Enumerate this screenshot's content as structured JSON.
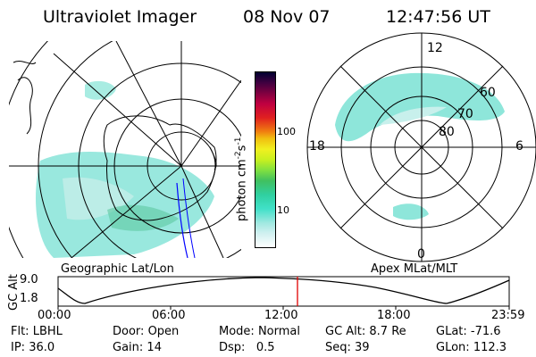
{
  "header": {
    "title": "Ultraviolet Imager",
    "date": "08 Nov 07",
    "time": "12:47:56 UT"
  },
  "geographic_panel": {
    "label": "Geographic Lat/Lon"
  },
  "apex_panel": {
    "label": "Apex MLat/MLT",
    "mlt_labels": {
      "top": "12",
      "left": "18",
      "right": "6",
      "bottom": "0"
    },
    "mlat_labels": [
      "60",
      "70",
      "80"
    ]
  },
  "colorbar": {
    "title": "photon cm",
    "exp1": "-2",
    "mid": "s",
    "exp2": "-1",
    "tick_labels": [
      "100",
      "10"
    ],
    "colors": [
      "#ffffff",
      "#d0f0f0",
      "#9fe8e0",
      "#40e0c8",
      "#30d0a0",
      "#40c060",
      "#80e040",
      "#c8f020",
      "#f0f020",
      "#f0c010",
      "#f08010",
      "#e02020",
      "#c00040",
      "#800040",
      "#400040",
      "#000030"
    ]
  },
  "altitude_track": {
    "axis_label": "GC Alt",
    "y_ticks": [
      "9.0",
      "1.8"
    ],
    "x_ticks": [
      "00:00",
      "06:00",
      "12:00",
      "18:00",
      "23:59"
    ],
    "current_time_marker": "12:47:56"
  },
  "status": {
    "row1": [
      {
        "label": "Flt:",
        "value": "LBHL"
      },
      {
        "label": "Door:",
        "value": "Open"
      },
      {
        "label": "Mode:",
        "value": "Normal"
      },
      {
        "label": "GC Alt:",
        "value": "8.7 Re"
      },
      {
        "label": "GLat:",
        "value": "-71.6"
      }
    ],
    "row2": [
      {
        "label": "IP:",
        "value": "36.0"
      },
      {
        "label": "Gain:",
        "value": "14"
      },
      {
        "label": "Dsp:",
        "value": "0.5"
      },
      {
        "label": "Seq:",
        "value": "39"
      },
      {
        "label": "GLon:",
        "value": "112.3"
      }
    ]
  },
  "colors": {
    "aurora": "#7fe8d8",
    "aurora_light": "#c8f0ec",
    "marker": "#e00000",
    "track": "#0000ff"
  }
}
